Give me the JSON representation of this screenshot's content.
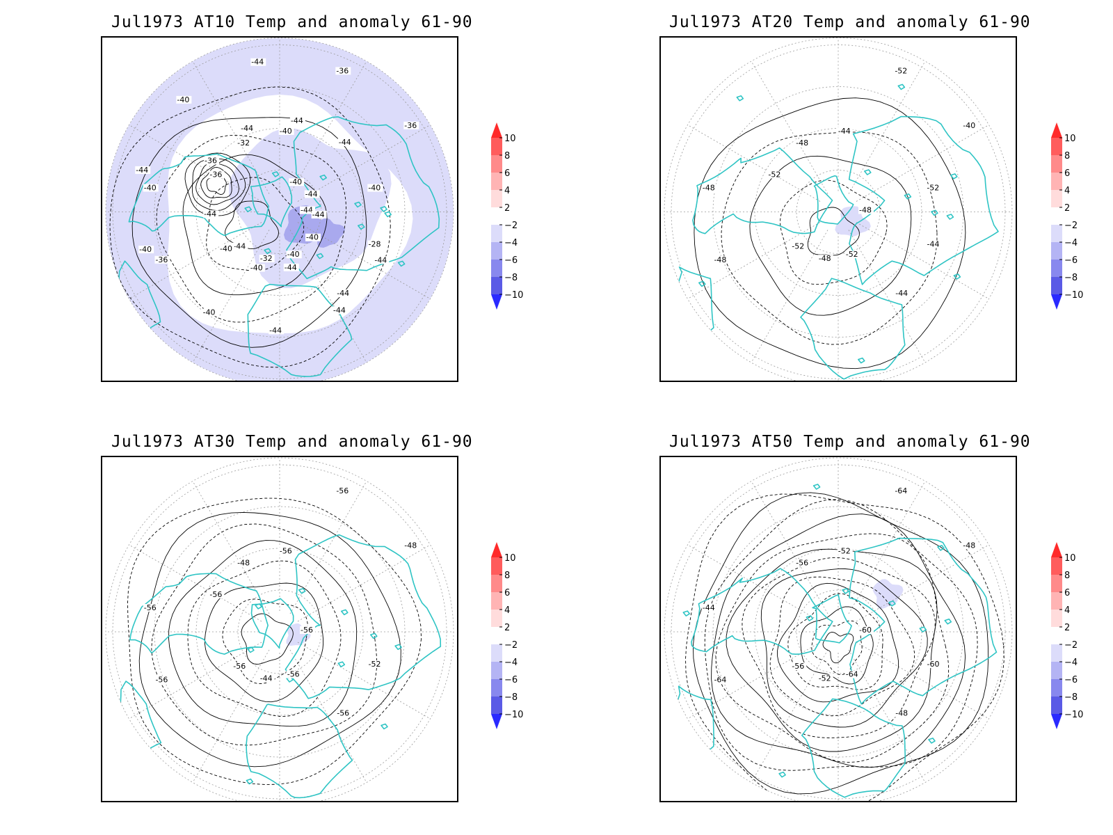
{
  "palette": {
    "coast": "#2ec4c4",
    "contour": "#000000",
    "graticule": "#9a9a9a",
    "anomaly_weak": "#dcdcfa",
    "anomaly_moderate": "#a9a9ee"
  },
  "colorbar": {
    "ticks": [
      "10",
      "8",
      "6",
      "4",
      "2",
      "−2",
      "−4",
      "−6",
      "−8",
      "−10"
    ],
    "fills": [
      "#ff2a2a",
      "#ff5c5c",
      "#ff8a8a",
      "#ffb4b4",
      "#ffdcdc",
      "#ffffff",
      "#dcdcfa",
      "#b4b4f4",
      "#8888ee",
      "#5a5ae6",
      "#2a2aff"
    ]
  },
  "panels": [
    {
      "title": "Jul1973 AT10 Temp and anomaly 61-90",
      "contour_labels": [
        "-44",
        "-44",
        "-40",
        "-44",
        "-40",
        "-36",
        "-32",
        "-32",
        "-28",
        "-36",
        "-36",
        "-40",
        "-36",
        "-40",
        "-40",
        "-44",
        "-40",
        "-44",
        "-44",
        "-44",
        "-40",
        "-44",
        "-40",
        "-44",
        "-44",
        "-44",
        "-44",
        "-40",
        "-44",
        "-44",
        "-40",
        "-40",
        "-44",
        "-36"
      ]
    },
    {
      "title": "Jul1973 AT20 Temp and anomaly 61-90",
      "contour_labels": [
        "-48",
        "-52",
        "-44",
        "-44",
        "-48",
        "-40",
        "-48",
        "-48",
        "-44",
        "-48",
        "-52",
        "-52",
        "-52",
        "-52"
      ]
    },
    {
      "title": "Jul1973 AT30 Temp and anomaly 61-90",
      "contour_labels": [
        "-56",
        "-56",
        "-56",
        "-56",
        "-56",
        "-48",
        "-44",
        "-48",
        "-52",
        "-56",
        "-56",
        "-56",
        "-56"
      ]
    },
    {
      "title": "Jul1973 AT50 Temp and anomaly 61-90",
      "contour_labels": [
        "-60",
        "-56",
        "-52",
        "-48",
        "-44",
        "-48",
        "-52",
        "-56",
        "-60",
        "-64",
        "-64",
        "-64"
      ]
    }
  ]
}
